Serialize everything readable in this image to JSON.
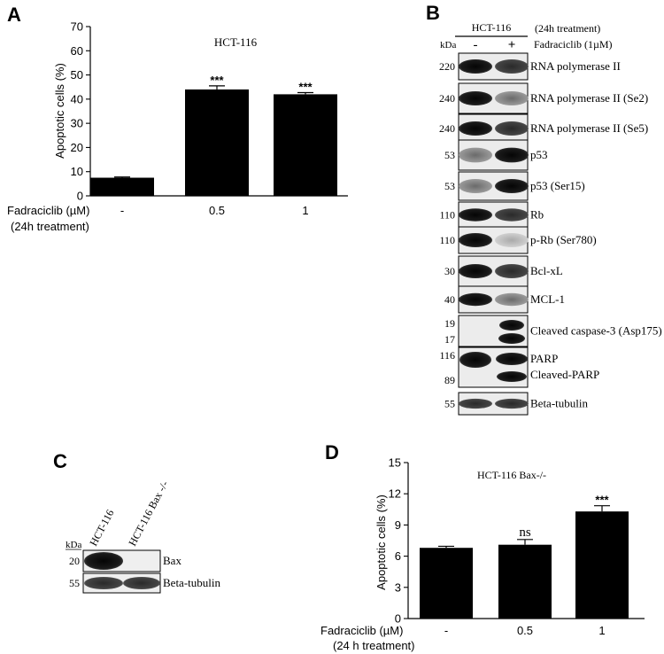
{
  "panels": {
    "a": "A",
    "b": "B",
    "c": "C",
    "d": "D"
  },
  "chart_data": [
    {
      "type": "bar",
      "panel": "A",
      "title": "HCT-116",
      "ylabel": "Apoptotic cells (%)",
      "xlabel_line1": "Fadraciclib (µM)",
      "xlabel_line2": "(24h treatment)",
      "categories": [
        "-",
        "0.5",
        "1"
      ],
      "values": [
        7.5,
        44,
        42
      ],
      "errors": [
        0.3,
        1.5,
        0.7
      ],
      "significance": [
        "",
        "***",
        "***"
      ],
      "ylim": [
        0,
        70
      ],
      "yticks": [
        0,
        10,
        20,
        30,
        40,
        50,
        60,
        70
      ]
    },
    {
      "type": "bar",
      "panel": "D",
      "title": "HCT-116 Bax-/-",
      "ylabel": "Apoptotic cells (%)",
      "xlabel_line1": "Fadraciclib (µM)",
      "xlabel_line2": "(24 h treatment)",
      "categories": [
        "-",
        "0.5",
        "1"
      ],
      "values": [
        6.8,
        7.1,
        10.3
      ],
      "errors": [
        0.15,
        0.5,
        0.55
      ],
      "significance": [
        "",
        "ns",
        "***"
      ],
      "ylim": [
        0,
        15
      ],
      "yticks": [
        0,
        3,
        6,
        9,
        12,
        15
      ]
    }
  ],
  "blot_b": {
    "cell_line": "HCT-116",
    "treatment_note": "(24h treatment)",
    "kda": "kDa",
    "lane_minus": "-",
    "lane_plus": "+",
    "drug": "Fadraciclib (1µM)",
    "bands": [
      {
        "mw": "220",
        "label": "RNA polymerase II"
      },
      {
        "mw": "240",
        "label": "RNA polymerase II (Se2)"
      },
      {
        "mw": "240",
        "label": "RNA polymerase II (Se5)"
      },
      {
        "mw": "53",
        "label": "p53"
      },
      {
        "mw": "53",
        "label": "p53 (Ser15)"
      },
      {
        "mw": "110",
        "label": "Rb"
      },
      {
        "mw": "110",
        "label": "p-Rb (Ser780)"
      },
      {
        "mw": "30",
        "label": "Bcl-xL"
      },
      {
        "mw": "40",
        "label": "MCL-1"
      },
      {
        "mw": "19",
        "mw2": "17",
        "label": "Cleaved caspase-3 (Asp175)"
      },
      {
        "mw": "116",
        "mw2": "89",
        "label": "PARP",
        "label2": "Cleaved-PARP"
      },
      {
        "mw": "55",
        "label": "Beta-tubulin"
      }
    ]
  },
  "blot_c": {
    "lane1": "HCT-116",
    "lane2": "HCT-116 Bax -/-",
    "kda": "kDa",
    "bands": [
      {
        "mw": "20",
        "label": "Bax"
      },
      {
        "mw": "55",
        "label": "Beta-tubulin"
      }
    ]
  }
}
